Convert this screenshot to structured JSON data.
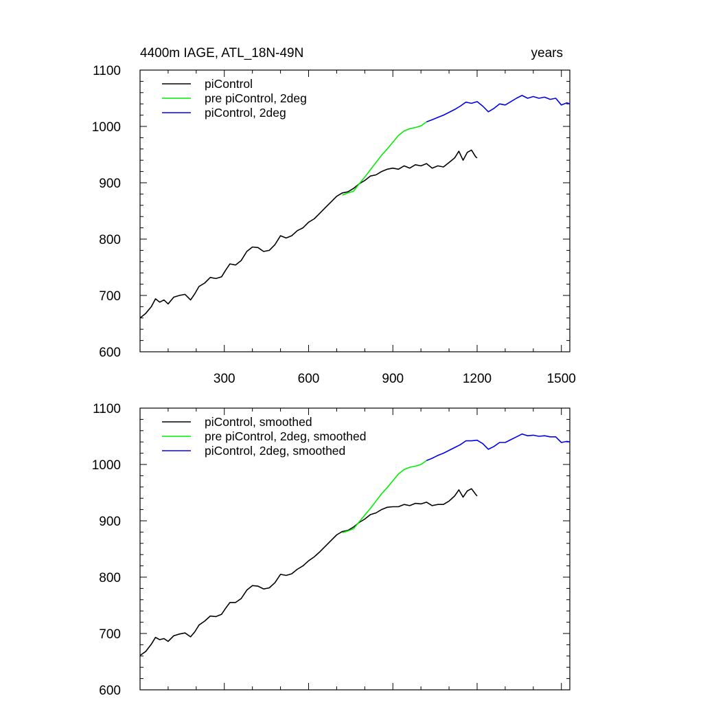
{
  "chart_data": [
    {
      "type": "line",
      "title": "4400m IAGE, ATL_18N-49N",
      "title_right": "years",
      "xlim": [
        0,
        1530
      ],
      "ylim": [
        600,
        1100
      ],
      "xticks": [
        300,
        600,
        900,
        1200,
        1500
      ],
      "yticks": [
        600,
        700,
        800,
        900,
        1000,
        1100
      ],
      "xtick_labels_shown": true,
      "grid": false,
      "legend_position": "top-left",
      "series": [
        {
          "name": "piControl",
          "color": "#000000",
          "x": [
            0,
            20,
            40,
            55,
            70,
            85,
            100,
            120,
            140,
            160,
            180,
            195,
            210,
            230,
            250,
            270,
            290,
            305,
            320,
            340,
            360,
            380,
            400,
            420,
            440,
            460,
            480,
            500,
            520,
            540,
            560,
            580,
            600,
            620,
            640,
            660,
            680,
            700,
            720,
            740,
            760,
            780,
            800,
            820,
            840,
            860,
            880,
            900,
            920,
            940,
            960,
            980,
            1000,
            1020,
            1040,
            1060,
            1080,
            1100,
            1120,
            1135,
            1150,
            1165,
            1180,
            1195,
            1200
          ],
          "values": [
            660,
            668,
            680,
            694,
            688,
            692,
            685,
            697,
            700,
            702,
            692,
            703,
            716,
            722,
            732,
            730,
            733,
            745,
            756,
            754,
            762,
            778,
            786,
            785,
            778,
            780,
            790,
            806,
            802,
            806,
            815,
            820,
            830,
            836,
            846,
            856,
            866,
            876,
            882,
            884,
            890,
            898,
            904,
            912,
            914,
            920,
            924,
            926,
            924,
            930,
            926,
            932,
            930,
            934,
            926,
            930,
            928,
            936,
            944,
            956,
            940,
            954,
            958,
            946,
            944
          ]
        },
        {
          "name": "pre piControl, 2deg",
          "color": "#00ee00",
          "x": [
            720,
            740,
            760,
            780,
            800,
            820,
            840,
            860,
            880,
            900,
            920,
            940,
            960,
            980,
            1000,
            1020
          ],
          "values": [
            878,
            882,
            885,
            898,
            910,
            923,
            936,
            949,
            960,
            972,
            984,
            992,
            996,
            998,
            1001,
            1008
          ]
        },
        {
          "name": "piControl, 2deg",
          "color": "#0000ee",
          "x": [
            1020,
            1040,
            1060,
            1080,
            1100,
            1120,
            1140,
            1160,
            1180,
            1200,
            1220,
            1240,
            1260,
            1280,
            1300,
            1320,
            1340,
            1360,
            1380,
            1400,
            1420,
            1440,
            1460,
            1480,
            1500,
            1520,
            1530
          ],
          "values": [
            1008,
            1012,
            1016,
            1020,
            1025,
            1030,
            1036,
            1043,
            1041,
            1044,
            1036,
            1026,
            1032,
            1040,
            1038,
            1044,
            1050,
            1055,
            1050,
            1053,
            1050,
            1052,
            1048,
            1050,
            1038,
            1042,
            1040
          ]
        }
      ]
    },
    {
      "type": "line",
      "xlim": [
        0,
        1530
      ],
      "ylim": [
        600,
        1100
      ],
      "xticks": [
        300,
        600,
        900,
        1200,
        1500
      ],
      "yticks": [
        600,
        700,
        800,
        900,
        1000,
        1100
      ],
      "xtick_labels_shown": false,
      "grid": false,
      "legend_position": "top-left",
      "series": [
        {
          "name": "piControl, smoothed",
          "color": "#000000",
          "x": [
            0,
            20,
            40,
            55,
            70,
            85,
            100,
            120,
            140,
            160,
            180,
            195,
            210,
            230,
            250,
            270,
            290,
            305,
            320,
            340,
            360,
            380,
            400,
            420,
            440,
            460,
            480,
            500,
            520,
            540,
            560,
            580,
            600,
            620,
            640,
            660,
            680,
            700,
            720,
            740,
            760,
            780,
            800,
            820,
            840,
            860,
            880,
            900,
            920,
            940,
            960,
            980,
            1000,
            1020,
            1040,
            1060,
            1080,
            1100,
            1120,
            1135,
            1150,
            1165,
            1180,
            1195,
            1200
          ],
          "values": [
            661,
            668,
            681,
            693,
            689,
            691,
            686,
            696,
            699,
            701,
            694,
            703,
            715,
            722,
            731,
            730,
            734,
            745,
            755,
            755,
            762,
            777,
            785,
            784,
            779,
            781,
            790,
            805,
            803,
            806,
            814,
            820,
            829,
            836,
            845,
            855,
            865,
            875,
            881,
            883,
            889,
            897,
            903,
            911,
            914,
            920,
            924,
            925,
            925,
            929,
            927,
            931,
            930,
            933,
            927,
            929,
            929,
            935,
            944,
            955,
            942,
            953,
            957,
            947,
            944
          ]
        },
        {
          "name": "pre piControl, 2deg, smoothed",
          "color": "#00ee00",
          "x": [
            720,
            740,
            760,
            780,
            800,
            820,
            840,
            860,
            880,
            900,
            920,
            940,
            960,
            980,
            1000,
            1020
          ],
          "values": [
            879,
            882,
            886,
            898,
            910,
            922,
            935,
            948,
            959,
            971,
            983,
            991,
            995,
            997,
            1000,
            1007
          ]
        },
        {
          "name": "piControl, 2deg, smoothed",
          "color": "#0000ee",
          "x": [
            1020,
            1040,
            1060,
            1080,
            1100,
            1120,
            1140,
            1160,
            1180,
            1200,
            1220,
            1240,
            1260,
            1280,
            1300,
            1320,
            1340,
            1360,
            1380,
            1400,
            1420,
            1440,
            1460,
            1480,
            1500,
            1520,
            1530
          ],
          "values": [
            1007,
            1011,
            1016,
            1020,
            1025,
            1030,
            1035,
            1042,
            1042,
            1043,
            1037,
            1027,
            1032,
            1039,
            1039,
            1044,
            1049,
            1054,
            1051,
            1052,
            1050,
            1051,
            1049,
            1049,
            1039,
            1041,
            1040
          ]
        }
      ]
    }
  ]
}
